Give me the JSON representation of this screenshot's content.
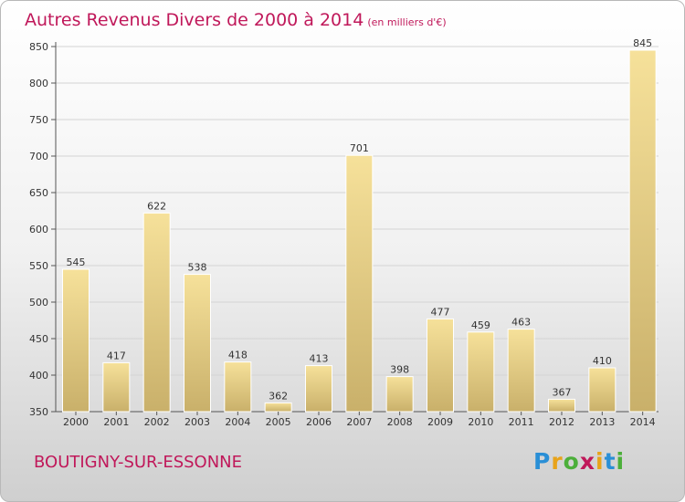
{
  "title": "Autres Revenus Divers de 2000 à 2014",
  "title_unit": "(en milliers d'€)",
  "place": "BOUTIGNY-SUR-ESSONNE",
  "logo": {
    "letters": [
      "P",
      "r",
      "o",
      "x",
      "i",
      "t",
      "i"
    ],
    "colors": [
      "#2a8fd6",
      "#e8a31a",
      "#4caf3a",
      "#c0185a",
      "#e8a31a",
      "#2a8fd6",
      "#4caf3a"
    ]
  },
  "colors": {
    "title": "#c0185a",
    "bar_top": "#f6e19a",
    "bar_bottom": "#c9b06a"
  },
  "chart_data": {
    "type": "bar",
    "categories": [
      "2000",
      "2001",
      "2002",
      "2003",
      "2004",
      "2005",
      "2006",
      "2007",
      "2008",
      "2009",
      "2010",
      "2011",
      "2012",
      "2013",
      "2014"
    ],
    "values": [
      545,
      417,
      622,
      538,
      418,
      362,
      413,
      701,
      398,
      477,
      459,
      463,
      367,
      410,
      845
    ],
    "ylim": [
      350,
      850
    ],
    "yticks": [
      350,
      400,
      450,
      500,
      550,
      600,
      650,
      700,
      750,
      800,
      850
    ],
    "grid": true
  }
}
